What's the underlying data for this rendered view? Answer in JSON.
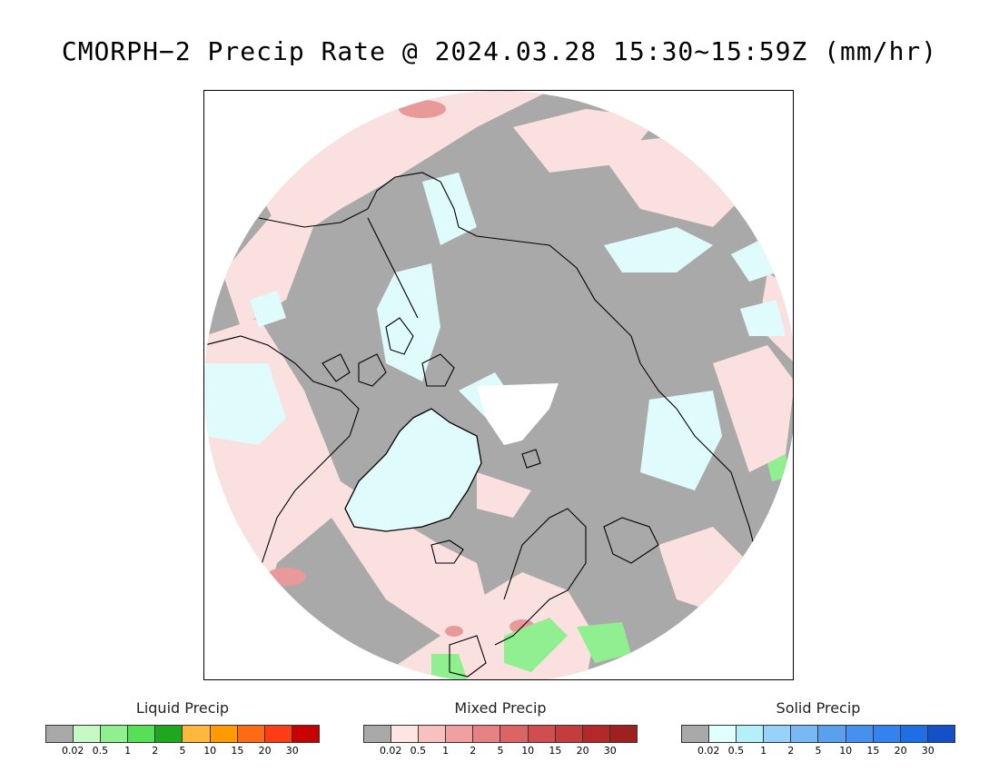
{
  "title": "CMORPH−2 Precip Rate @ 2024.03.28 15:30~15:59Z (mm/hr)",
  "map": {
    "projection": "north-polar-stereographic",
    "colors": {
      "no_precip": "#a9a9a9",
      "mixed_light": "#fbe0e0",
      "solid_light": "#e0fbfb",
      "mixed_moderate": "#e89a9a",
      "liquid_light": "#90f090",
      "no_data": "#ffffff",
      "coastline": "#000000"
    }
  },
  "legends": [
    {
      "title": "Liquid Precip",
      "colors": [
        "#a9a9a9",
        "#c6f9c6",
        "#8ef08e",
        "#56e056",
        "#1ea81e",
        "#ffb83a",
        "#ff9a00",
        "#ff6a14",
        "#ff3c14",
        "#c80000"
      ],
      "ticks": [
        "0.02",
        "0.5",
        "1",
        "2",
        "5",
        "10",
        "15",
        "20",
        "30"
      ]
    },
    {
      "title": "Mixed Precip",
      "colors": [
        "#a9a9a9",
        "#ffe4e4",
        "#f9c0c0",
        "#f0a0a0",
        "#e88282",
        "#dc6464",
        "#d24e4e",
        "#c43c3c",
        "#b42828",
        "#a02020"
      ],
      "ticks": [
        "0.02",
        "0.5",
        "1",
        "2",
        "5",
        "10",
        "15",
        "20",
        "30"
      ]
    },
    {
      "title": "Solid Precip",
      "colors": [
        "#a9a9a9",
        "#e0ffff",
        "#b4f0fa",
        "#96d2fa",
        "#78b9f5",
        "#5aa0f0",
        "#4691f0",
        "#3282f0",
        "#1e6ee6",
        "#1450c8"
      ],
      "ticks": [
        "0.02",
        "0.5",
        "1",
        "2",
        "5",
        "10",
        "15",
        "20",
        "30"
      ]
    }
  ]
}
